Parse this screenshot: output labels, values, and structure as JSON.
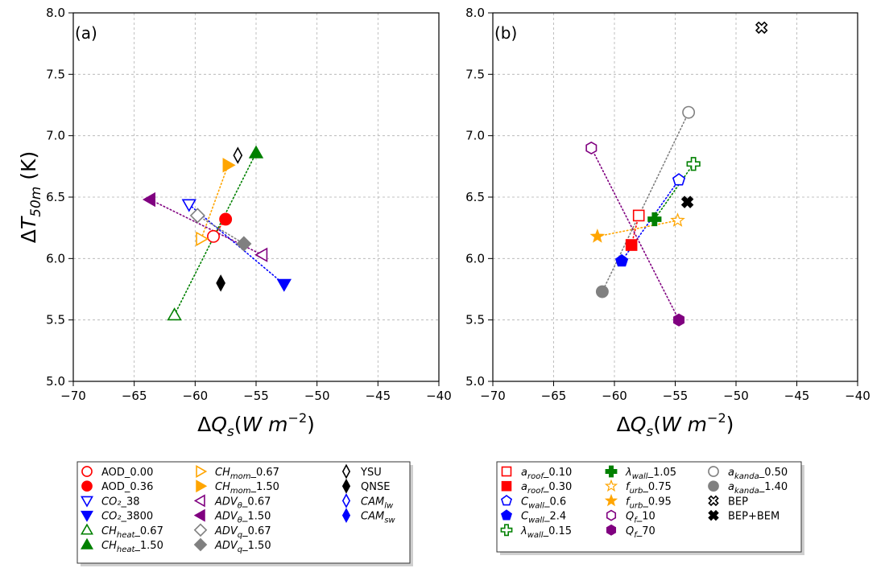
{
  "chart_data": [
    {
      "type": "scatter",
      "panel_label": "(a)",
      "xlim": [
        -70,
        -40
      ],
      "ylim": [
        5.0,
        8.0
      ],
      "xticks": [
        -70,
        -65,
        -60,
        -55,
        -50,
        -45,
        -40
      ],
      "yticks": [
        5.0,
        5.5,
        6.0,
        6.5,
        7.0,
        7.5,
        8.0
      ],
      "xtick_labels": [
        "−70",
        "−65",
        "−60",
        "−55",
        "−50",
        "−45",
        "−40"
      ],
      "ytick_labels": [
        "5.0",
        "5.5",
        "6.0",
        "6.5",
        "7.0",
        "7.5",
        "8.0"
      ],
      "ylabel": "ΔT₅₀ₘ (K)",
      "xlabel": "ΔQₛ(W m⁻²)",
      "grid": true,
      "legend_position": "below",
      "legend_columns": 3,
      "series": [
        {
          "label": "AOD_0.00",
          "x": -58.5,
          "y": 6.18,
          "marker": "circle",
          "filled": false,
          "color": "#ff0000"
        },
        {
          "label": "AOD_0.36",
          "x": -57.5,
          "y": 6.32,
          "marker": "circle",
          "filled": true,
          "color": "#ff0000"
        },
        {
          "label": "CO₂_38",
          "x": -60.5,
          "y": 6.44,
          "marker": "triangle-down",
          "filled": false,
          "color": "#0000ff"
        },
        {
          "label": "CO₂_3800",
          "x": -52.7,
          "y": 5.79,
          "marker": "triangle-down",
          "filled": true,
          "color": "#0000ff"
        },
        {
          "label": "CH_heat_0.67",
          "x": -61.7,
          "y": 5.54,
          "marker": "triangle-up",
          "filled": false,
          "color": "#008000"
        },
        {
          "label": "CH_heat_1.50",
          "x": -55.0,
          "y": 6.86,
          "marker": "triangle-up",
          "filled": true,
          "color": "#008000"
        },
        {
          "label": "CH_mom_0.67",
          "x": -59.5,
          "y": 6.16,
          "marker": "triangle-right",
          "filled": false,
          "color": "#ffa500"
        },
        {
          "label": "CH_mom_1.50",
          "x": -57.3,
          "y": 6.76,
          "marker": "triangle-right",
          "filled": true,
          "color": "#ffa500"
        },
        {
          "label": "ADV_θ_0.67",
          "x": -54.5,
          "y": 6.03,
          "marker": "triangle-left",
          "filled": false,
          "color": "#800080"
        },
        {
          "label": "ADV_θ_1.50",
          "x": -63.7,
          "y": 6.48,
          "marker": "triangle-left",
          "filled": true,
          "color": "#800080"
        },
        {
          "label": "ADV_q_0.67",
          "x": -59.8,
          "y": 6.35,
          "marker": "diamond",
          "filled": false,
          "color": "#808080"
        },
        {
          "label": "ADV_q_1.50",
          "x": -56.0,
          "y": 6.12,
          "marker": "diamond",
          "filled": true,
          "color": "#808080"
        },
        {
          "label": "YSU",
          "x": -56.5,
          "y": 6.84,
          "marker": "thin-diamond",
          "filled": false,
          "color": "#000000"
        },
        {
          "label": "QNSE",
          "x": -57.9,
          "y": 5.8,
          "marker": "thin-diamond",
          "filled": true,
          "color": "#000000"
        },
        {
          "label": "CAM_lw",
          "x": null,
          "y": null,
          "marker": "thin-diamond",
          "filled": false,
          "color": "#0000ff"
        },
        {
          "label": "CAM_sw",
          "x": null,
          "y": null,
          "marker": "thin-diamond",
          "filled": true,
          "color": "#0000ff"
        }
      ],
      "pairs": [
        {
          "from": 0,
          "to": 1,
          "color": "#ff0000"
        },
        {
          "from": 2,
          "to": 3,
          "color": "#0000ff"
        },
        {
          "from": 4,
          "to": 5,
          "color": "#008000"
        },
        {
          "from": 6,
          "to": 7,
          "color": "#ffa500"
        },
        {
          "from": 8,
          "to": 9,
          "color": "#800080"
        },
        {
          "from": 10,
          "to": 11,
          "color": "#808080"
        }
      ]
    },
    {
      "type": "scatter",
      "panel_label": "(b)",
      "xlim": [
        -70,
        -40
      ],
      "ylim": [
        5.0,
        8.0
      ],
      "xticks": [
        -70,
        -65,
        -60,
        -55,
        -50,
        -45,
        -40
      ],
      "yticks": [
        5.0,
        5.5,
        6.0,
        6.5,
        7.0,
        7.5,
        8.0
      ],
      "xtick_labels": [
        "−70",
        "−65",
        "−60",
        "−55",
        "−50",
        "−45",
        "−40"
      ],
      "ytick_labels": [
        "5.0",
        "5.5",
        "6.0",
        "6.5",
        "7.0",
        "7.5",
        "8.0"
      ],
      "xlabel": "ΔQₛ(W m⁻²)",
      "grid": true,
      "legend_position": "below",
      "legend_columns": 3,
      "series": [
        {
          "label": "a_roof_0.10",
          "x": -58.0,
          "y": 6.35,
          "marker": "square",
          "filled": false,
          "color": "#ff0000"
        },
        {
          "label": "a_roof_0.30",
          "x": -58.6,
          "y": 6.11,
          "marker": "square",
          "filled": true,
          "color": "#ff0000"
        },
        {
          "label": "C_wall_0.6",
          "x": -54.7,
          "y": 6.64,
          "marker": "pentagon",
          "filled": false,
          "color": "#0000ff"
        },
        {
          "label": "C_wall_2.4",
          "x": -59.4,
          "y": 5.98,
          "marker": "pentagon",
          "filled": true,
          "color": "#0000ff"
        },
        {
          "label": "λ_wall_0.15",
          "x": -53.5,
          "y": 6.77,
          "marker": "plus",
          "filled": false,
          "color": "#008000"
        },
        {
          "label": "λ_wall_1.05",
          "x": -56.7,
          "y": 6.32,
          "marker": "plus",
          "filled": true,
          "color": "#008000"
        },
        {
          "label": "f_urb_0.75",
          "x": -54.8,
          "y": 6.31,
          "marker": "star",
          "filled": false,
          "color": "#ffa500"
        },
        {
          "label": "f_urb_0.95",
          "x": -61.4,
          "y": 6.18,
          "marker": "star",
          "filled": true,
          "color": "#ffa500"
        },
        {
          "label": "Q_f_10",
          "x": -61.9,
          "y": 6.9,
          "marker": "hexagon",
          "filled": false,
          "color": "#800080"
        },
        {
          "label": "Q_f_70",
          "x": -54.7,
          "y": 5.5,
          "marker": "hexagon",
          "filled": true,
          "color": "#800080"
        },
        {
          "label": "a_kanda_0.50",
          "x": -53.9,
          "y": 7.19,
          "marker": "circle",
          "filled": false,
          "color": "#808080"
        },
        {
          "label": "a_kanda_1.40",
          "x": -61.0,
          "y": 5.73,
          "marker": "circle",
          "filled": true,
          "color": "#808080"
        },
        {
          "label": "BEP",
          "x": -47.9,
          "y": 7.88,
          "marker": "x-thick",
          "filled": false,
          "color": "#000000"
        },
        {
          "label": "BEP+BEM",
          "x": -54.0,
          "y": 6.46,
          "marker": "x-thick",
          "filled": true,
          "color": "#000000"
        }
      ],
      "pairs": [
        {
          "from": 0,
          "to": 1,
          "color": "#ff0000"
        },
        {
          "from": 2,
          "to": 3,
          "color": "#0000ff"
        },
        {
          "from": 4,
          "to": 5,
          "color": "#008000"
        },
        {
          "from": 6,
          "to": 7,
          "color": "#ffa500"
        },
        {
          "from": 8,
          "to": 9,
          "color": "#800080"
        },
        {
          "from": 10,
          "to": 11,
          "color": "#808080"
        }
      ]
    }
  ]
}
